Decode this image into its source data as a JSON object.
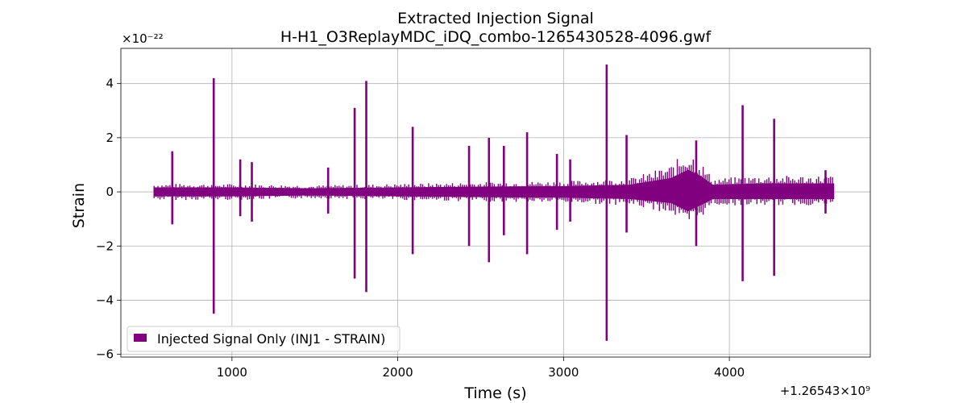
{
  "chart_data": {
    "type": "line",
    "title": "Extracted Injection Signal",
    "subtitle": "H-H1_O3ReplayMDC_iDQ_combo-1265430528-4096.gwf",
    "xlabel": "Time (s)",
    "ylabel": "Strain",
    "x_offset_label": "+1.26543×10⁹",
    "y_scale_label": "×10⁻²²",
    "xlim": [
      330,
      4850
    ],
    "ylim": [
      -6.1,
      5.3
    ],
    "x_ticks": [
      1000,
      2000,
      3000,
      4000
    ],
    "x_tick_labels": [
      "1000",
      "2000",
      "3000",
      "4000"
    ],
    "y_ticks": [
      -6,
      -4,
      -2,
      0,
      2,
      4
    ],
    "y_tick_labels": [
      "−6",
      "−4",
      "−2",
      "0",
      "2",
      "4"
    ],
    "grid": true,
    "legend_position": "lower-left",
    "color": "#800080",
    "series": [
      {
        "name": "Injected Signal Only (INJ1 - STRAIN)",
        "baseline_x": [
          530,
          4630
        ],
        "band": [
          {
            "x": 530,
            "lo": -0.15,
            "hi": 0.15
          },
          {
            "x": 1000,
            "lo": -0.15,
            "hi": 0.15
          },
          {
            "x": 1500,
            "lo": -0.12,
            "hi": 0.12
          },
          {
            "x": 2000,
            "lo": -0.15,
            "hi": 0.15
          },
          {
            "x": 2500,
            "lo": -0.18,
            "hi": 0.18
          },
          {
            "x": 3000,
            "lo": -0.2,
            "hi": 0.2
          },
          {
            "x": 3400,
            "lo": -0.25,
            "hi": 0.25
          },
          {
            "x": 3650,
            "lo": -0.4,
            "hi": 0.5
          },
          {
            "x": 3750,
            "lo": -0.7,
            "hi": 0.8
          },
          {
            "x": 3820,
            "lo": -0.5,
            "hi": 0.6
          },
          {
            "x": 3900,
            "lo": -0.25,
            "hi": 0.25
          },
          {
            "x": 4200,
            "lo": -0.25,
            "hi": 0.3
          },
          {
            "x": 4630,
            "lo": -0.25,
            "hi": 0.3
          }
        ],
        "spikes": [
          {
            "x": 640,
            "hi": 1.5,
            "lo": -1.2
          },
          {
            "x": 890,
            "hi": 4.2,
            "lo": -4.5
          },
          {
            "x": 1050,
            "hi": 1.2,
            "lo": -0.9
          },
          {
            "x": 1120,
            "hi": 1.1,
            "lo": -1.1
          },
          {
            "x": 1580,
            "hi": 0.9,
            "lo": -0.8
          },
          {
            "x": 1740,
            "hi": 3.1,
            "lo": -3.2
          },
          {
            "x": 1810,
            "hi": 4.1,
            "lo": -3.7
          },
          {
            "x": 2090,
            "hi": 2.4,
            "lo": -2.3
          },
          {
            "x": 2430,
            "hi": 1.7,
            "lo": -2.0
          },
          {
            "x": 2550,
            "hi": 2.0,
            "lo": -2.6
          },
          {
            "x": 2640,
            "hi": 1.7,
            "lo": -1.6
          },
          {
            "x": 2780,
            "hi": 2.2,
            "lo": -2.3
          },
          {
            "x": 2960,
            "hi": 1.4,
            "lo": -1.4
          },
          {
            "x": 3040,
            "hi": 1.2,
            "lo": -1.1
          },
          {
            "x": 3260,
            "hi": 4.7,
            "lo": -5.5
          },
          {
            "x": 3380,
            "hi": 2.1,
            "lo": -1.5
          },
          {
            "x": 3800,
            "hi": 1.9,
            "lo": -2.0
          },
          {
            "x": 4080,
            "hi": 3.2,
            "lo": -3.3
          },
          {
            "x": 4270,
            "hi": 2.7,
            "lo": -3.1
          },
          {
            "x": 4580,
            "hi": 0.8,
            "lo": -0.8
          }
        ]
      }
    ]
  }
}
